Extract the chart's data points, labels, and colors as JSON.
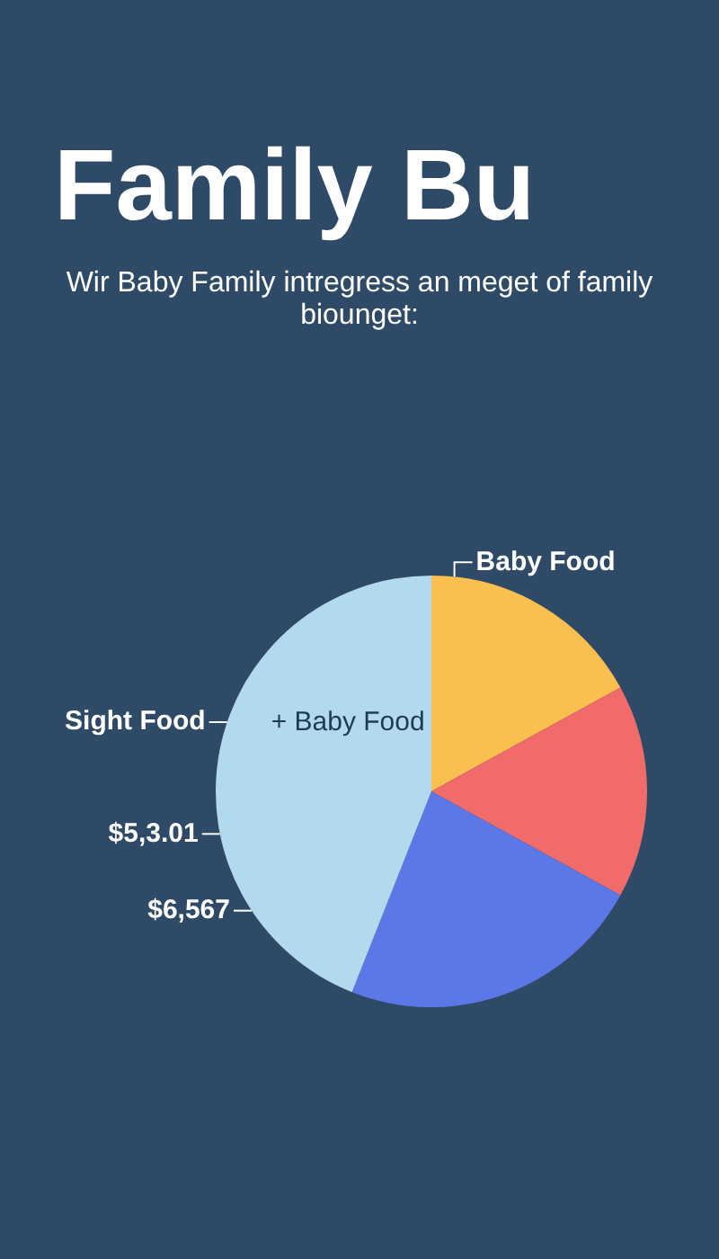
{
  "chart_data": {
    "type": "pie",
    "title": "Family Bu",
    "subtitle": "Wir Baby Family intregress an meget of family biounget:",
    "categories": [
      "Baby Food",
      null,
      null,
      "Sight Food"
    ],
    "values": [
      17,
      16,
      23,
      44
    ],
    "colors": [
      "#fbbf4f",
      "#f26b6b",
      "#5b78e6",
      "#b3d9ee"
    ],
    "annotations": [
      "+ Baby Food",
      "$5,3.01",
      "$6,567"
    ],
    "legend": false
  }
}
